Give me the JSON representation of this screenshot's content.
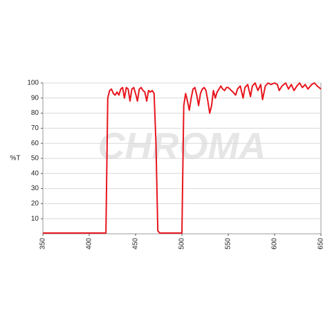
{
  "chart_data": {
    "type": "line",
    "ylabel": "%T",
    "watermark": "CHROMA",
    "x": [
      350,
      360,
      370,
      380,
      390,
      400,
      410,
      418,
      420,
      422,
      424,
      426,
      428,
      430,
      432,
      434,
      436,
      438,
      440,
      442,
      444,
      446,
      448,
      450,
      452,
      454,
      456,
      458,
      460,
      462,
      464,
      466,
      468,
      470,
      472,
      474,
      476,
      480,
      490,
      500,
      502,
      504,
      506,
      508,
      510,
      512,
      514,
      516,
      518,
      520,
      522,
      524,
      526,
      528,
      530,
      532,
      534,
      536,
      538,
      540,
      542,
      544,
      546,
      548,
      550,
      555,
      558,
      560,
      563,
      566,
      568,
      571,
      574,
      576,
      579,
      582,
      585,
      587,
      590,
      593,
      596,
      600,
      603,
      605,
      608,
      612,
      615,
      618,
      621,
      624,
      627,
      630,
      633,
      636,
      640,
      643,
      646,
      650
    ],
    "series": [
      {
        "name": "%T",
        "color": "#e8141c",
        "values": [
          0.5,
          0.5,
          0.5,
          0.5,
          0.5,
          0.5,
          0.5,
          0.5,
          90,
          95,
          96,
          93,
          92,
          94,
          92,
          96,
          97,
          90,
          97,
          96,
          88,
          96,
          97,
          93,
          88,
          96,
          97,
          95,
          94,
          88,
          95,
          94,
          95,
          93,
          60,
          2,
          0.5,
          0.5,
          0.5,
          0.5,
          85,
          93,
          88,
          82,
          90,
          96,
          97,
          92,
          85,
          93,
          96,
          97,
          95,
          88,
          80,
          85,
          95,
          90,
          94,
          96,
          98,
          96,
          95,
          97,
          97,
          94,
          92,
          96,
          98,
          90,
          97,
          99,
          91,
          98,
          100,
          95,
          99,
          89,
          98,
          100,
          99,
          100,
          99,
          95,
          98,
          100,
          96,
          99,
          95,
          98,
          100,
          97,
          99,
          96,
          99,
          100,
          98,
          96
        ]
      }
    ],
    "xlim": [
      350,
      650
    ],
    "xticks": [
      350,
      400,
      450,
      500,
      550,
      600,
      650
    ],
    "ylim": [
      0,
      100
    ],
    "yticks": [
      10,
      20,
      30,
      40,
      50,
      60,
      70,
      80,
      90,
      100
    ],
    "grid": true
  }
}
